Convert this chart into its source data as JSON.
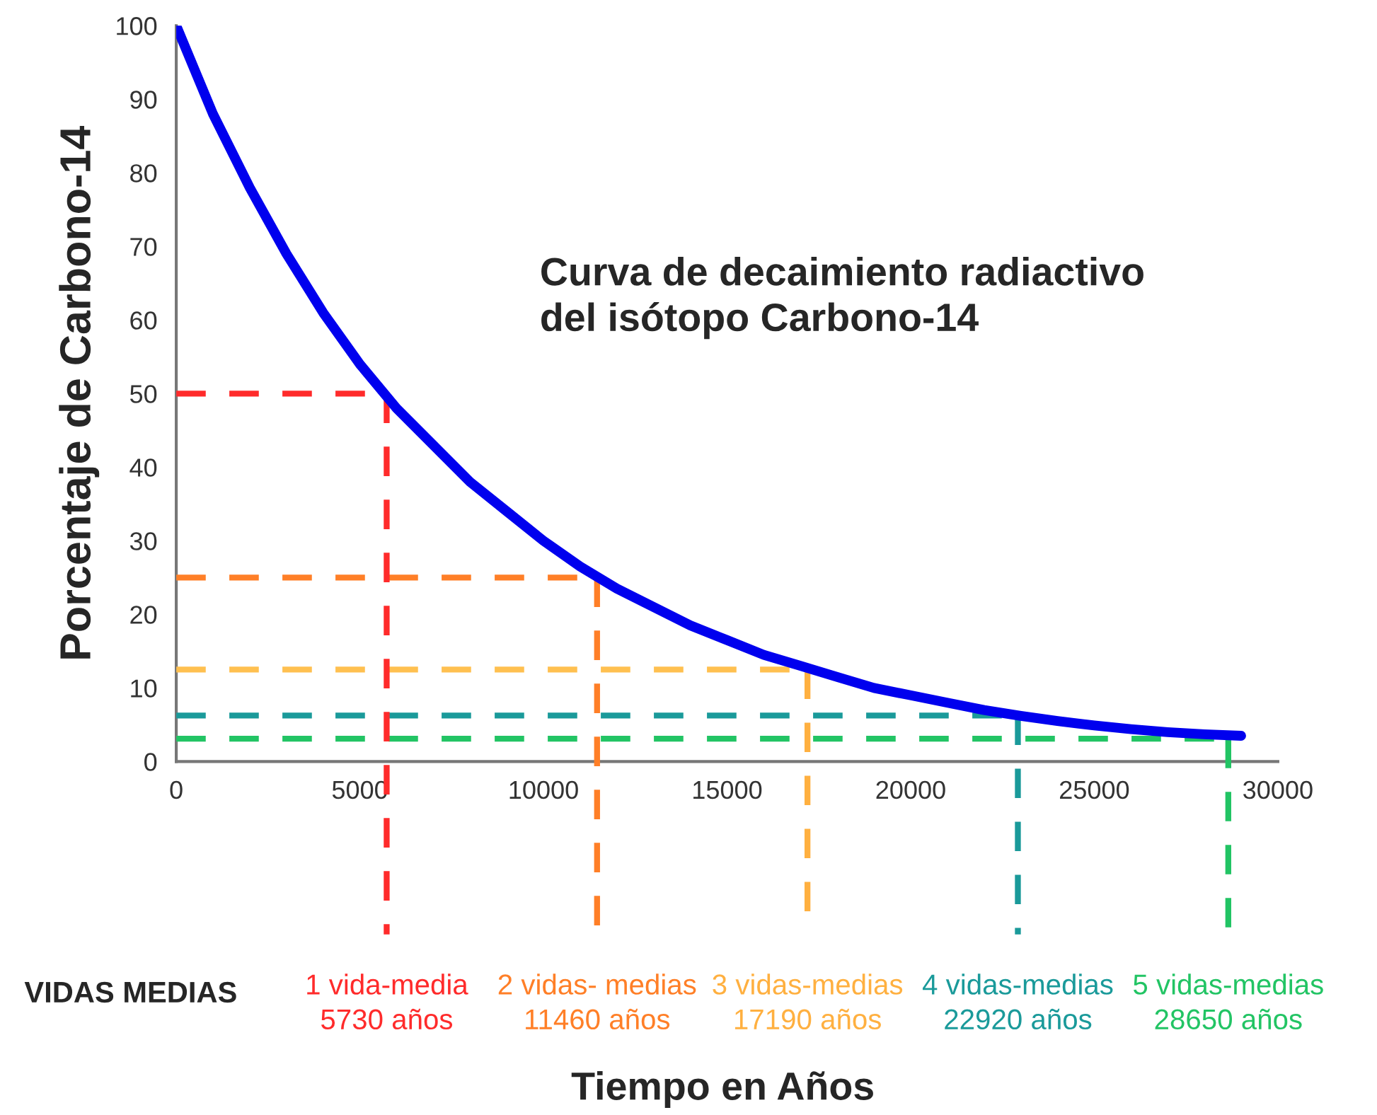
{
  "chart_data": {
    "type": "line",
    "x": [
      0,
      1000,
      2000,
      3000,
      4000,
      5000,
      6000,
      7000,
      8000,
      9000,
      10000,
      11000,
      12000,
      13000,
      14000,
      15000,
      16000,
      17000,
      18000,
      19000,
      20000,
      21000,
      22000,
      23000,
      24000,
      25000,
      26000,
      27000,
      28000,
      29000
    ],
    "series": [
      {
        "color": "#0000ee",
        "values": [
          100,
          88,
          78,
          69,
          61,
          54,
          48,
          43,
          38,
          34,
          30,
          26.5,
          23.5,
          21,
          18.5,
          16.5,
          14.5,
          13,
          11.5,
          10,
          9,
          8,
          7,
          6.2,
          5.5,
          4.9,
          4.4,
          4,
          3.7,
          3.5
        ]
      }
    ],
    "xlim": [
      0,
      30000
    ],
    "xticks": [
      0,
      5000,
      10000,
      15000,
      20000,
      25000,
      30000
    ],
    "ylim": [
      0,
      100
    ],
    "yticks": [
      0,
      10,
      20,
      30,
      40,
      50,
      60,
      70,
      80,
      90,
      100
    ],
    "ylabel": "Porcentaje de Carbono-14",
    "grid": false,
    "legend": false,
    "marker": "none",
    "line_style": "solid",
    "ref_lines": [
      {
        "axis": "y",
        "value": 50,
        "color": "#ff2b2b",
        "line_style": "dashed"
      },
      {
        "axis": "y",
        "value": 25,
        "color": "#ff7f27",
        "line_style": "dashed"
      },
      {
        "axis": "y",
        "value": 12.5,
        "color": "#ffc050",
        "line_style": "dashed"
      },
      {
        "axis": "y",
        "value": 6.25,
        "color": "#1a9a9a",
        "line_style": "dashed"
      },
      {
        "axis": "y",
        "value": 3.1,
        "color": "#22c464",
        "line_style": "dashed"
      },
      {
        "axis": "x",
        "value": 5730,
        "label": "1 vida-media\n5730 años",
        "color": "#ff2b2b",
        "line_style": "dashed"
      },
      {
        "axis": "x",
        "value": 11460,
        "label": "2 vidas- medias\n11460 años",
        "color": "#ff7f27",
        "line_style": "dashed"
      },
      {
        "axis": "x",
        "value": 17190,
        "label": "3 vidas-medias\n17190 años",
        "color": "#ffb040",
        "line_style": "dashed"
      },
      {
        "axis": "x",
        "value": 22920,
        "label": "4 vidas-medias\n22920 años",
        "color": "#1a9a9a",
        "line_style": "dashed"
      },
      {
        "axis": "x",
        "value": 28650,
        "label": "5 vidas-medias\n28650 años",
        "color": "#22c464",
        "line_style": "dashed"
      }
    ],
    "annotations": [
      "Curva de decaimiento radiactivo\ndel isótopo Carbono-14",
      "VIDAS MEDIAS",
      "Tiempo en Años"
    ]
  }
}
